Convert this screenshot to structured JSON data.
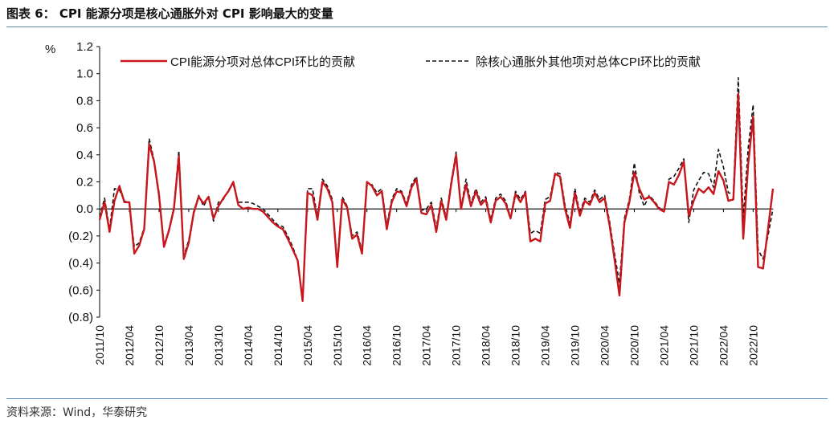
{
  "figure_title": "图表 6：  CPI 能源分项是核心通胀外对 CPI 影响最大的变量",
  "source": "资料来源：Wind，华泰研究",
  "colors": {
    "series_energy": "#c8161d",
    "series_other": "#111111",
    "rule": "#5a8ab8",
    "zero_line": "#000000"
  },
  "chart_data": {
    "type": "line",
    "title": "",
    "unit_label": "%",
    "ylim": [
      -0.8,
      1.2
    ],
    "y_ticks": [
      1.2,
      1.0,
      0.8,
      0.6,
      0.4,
      0.2,
      0.0,
      -0.2,
      -0.4,
      -0.6,
      -0.8
    ],
    "y_tick_labels": [
      "1.2",
      "1.0",
      "0.8",
      "0.6",
      "0.4",
      "0.2",
      "0.0",
      "(0.2)",
      "(0.4)",
      "(0.6)",
      "(0.8)"
    ],
    "x_start": "2011-10",
    "x_tick_labels": [
      "2011/10",
      "2012/04",
      "2012/10",
      "2013/04",
      "2013/10",
      "2014/04",
      "2014/10",
      "2015/04",
      "2015/10",
      "2016/04",
      "2016/10",
      "2017/04",
      "2017/10",
      "2018/04",
      "2018/10",
      "2019/04",
      "2019/10",
      "2020/04",
      "2020/10",
      "2021/04",
      "2021/10",
      "2022/04",
      "2022/10"
    ],
    "series": [
      {
        "name": "CPI能源分项对总体CPI环比的贡献",
        "style": "solid",
        "values": [
          -0.08,
          0.05,
          -0.17,
          0.06,
          0.17,
          0.05,
          0.05,
          -0.33,
          -0.27,
          -0.15,
          0.48,
          0.35,
          0.1,
          -0.28,
          -0.16,
          0.0,
          0.39,
          -0.37,
          -0.25,
          -0.03,
          0.09,
          0.04,
          0.09,
          -0.07,
          0.02,
          0.08,
          0.13,
          0.2,
          0.03,
          0.0,
          0.01,
          0.0,
          0.0,
          -0.02,
          -0.06,
          -0.1,
          -0.13,
          -0.15,
          -0.22,
          -0.3,
          -0.38,
          -0.68,
          0.12,
          0.1,
          -0.08,
          0.2,
          0.15,
          0.05,
          -0.43,
          0.07,
          0.01,
          -0.22,
          -0.19,
          -0.33,
          0.2,
          0.17,
          0.1,
          0.13,
          -0.15,
          0.05,
          0.13,
          0.12,
          0.02,
          0.16,
          0.22,
          -0.03,
          -0.04,
          0.03,
          -0.17,
          0.06,
          -0.08,
          0.18,
          0.4,
          0.0,
          0.18,
          0.02,
          0.13,
          0.03,
          0.07,
          -0.1,
          0.06,
          0.09,
          0.04,
          -0.07,
          0.11,
          0.05,
          0.12,
          -0.24,
          -0.22,
          -0.24,
          0.04,
          0.06,
          0.26,
          0.24,
          0.0,
          -0.14,
          0.12,
          -0.05,
          0.06,
          0.03,
          0.12,
          0.05,
          0.08,
          -0.12,
          -0.37,
          -0.64,
          -0.1,
          0.05,
          0.27,
          0.15,
          0.07,
          0.09,
          0.05,
          0.0,
          -0.02,
          0.2,
          0.18,
          0.25,
          0.35,
          -0.05,
          0.06,
          0.15,
          0.12,
          0.16,
          0.11,
          0.28,
          0.21,
          0.06,
          0.07,
          0.85,
          -0.22,
          0.33,
          0.68,
          -0.43,
          -0.44,
          -0.15,
          0.15
        ]
      },
      {
        "name": "除核心通胀外其他项对总体CPI环比的贡献",
        "style": "dashed",
        "values": [
          -0.06,
          0.08,
          -0.15,
          0.15,
          0.14,
          0.06,
          0.04,
          -0.28,
          -0.25,
          -0.14,
          0.52,
          0.36,
          0.12,
          -0.27,
          -0.15,
          0.01,
          0.43,
          -0.35,
          -0.23,
          -0.02,
          0.1,
          0.02,
          0.09,
          -0.09,
          0.05,
          0.07,
          0.14,
          0.18,
          0.05,
          0.05,
          0.05,
          0.04,
          0.02,
          0.0,
          -0.04,
          -0.08,
          -0.12,
          -0.13,
          -0.2,
          -0.28,
          -0.38,
          -0.68,
          0.15,
          0.15,
          -0.06,
          0.22,
          0.17,
          0.07,
          -0.4,
          0.09,
          0.02,
          -0.2,
          -0.17,
          -0.31,
          0.17,
          0.18,
          0.12,
          0.15,
          -0.12,
          0.07,
          0.15,
          0.13,
          0.04,
          0.18,
          0.24,
          -0.01,
          0.0,
          0.05,
          -0.14,
          0.08,
          -0.06,
          0.2,
          0.42,
          0.01,
          0.22,
          0.04,
          0.15,
          0.05,
          0.09,
          -0.08,
          0.08,
          0.11,
          0.06,
          -0.06,
          0.13,
          0.07,
          0.13,
          -0.18,
          -0.16,
          -0.18,
          0.07,
          0.09,
          0.27,
          0.26,
          0.03,
          -0.11,
          0.15,
          -0.03,
          0.08,
          0.05,
          0.14,
          0.07,
          0.1,
          -0.09,
          -0.33,
          -0.55,
          -0.07,
          0.07,
          0.34,
          0.12,
          0.02,
          0.1,
          0.06,
          0.01,
          -0.02,
          0.22,
          0.24,
          0.3,
          0.37,
          -0.1,
          0.14,
          0.21,
          0.27,
          0.26,
          0.16,
          0.44,
          0.31,
          0.12,
          0.11,
          0.97,
          -0.07,
          0.45,
          0.77,
          -0.3,
          -0.37,
          -0.2,
          0.0
        ]
      }
    ],
    "legend_position": "top",
    "grid": false
  }
}
